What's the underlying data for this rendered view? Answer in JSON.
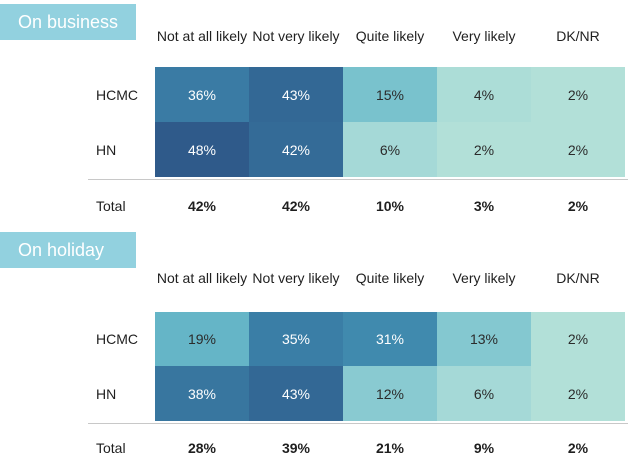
{
  "chart_data": {
    "type": "heatmap",
    "columns": [
      "Not at all likely",
      "Not very likely",
      "Quite likely",
      "Very likely",
      "DK/NR"
    ],
    "sections": [
      {
        "title": "On business",
        "rows": [
          {
            "label": "HCMC",
            "values": [
              36,
              43,
              15,
              4,
              2
            ],
            "display": [
              "36%",
              "43%",
              "15%",
              "4%",
              "2%"
            ]
          },
          {
            "label": "HN",
            "values": [
              48,
              42,
              6,
              2,
              2
            ],
            "display": [
              "48%",
              "42%",
              "6%",
              "2%",
              "2%"
            ]
          }
        ],
        "total": {
          "label": "Total",
          "display": [
            "42%",
            "42%",
            "10%",
            "3%",
            "2%"
          ]
        }
      },
      {
        "title": "On holiday",
        "rows": [
          {
            "label": "HCMC",
            "values": [
              19,
              35,
              31,
              13,
              2
            ],
            "display": [
              "19%",
              "35%",
              "31%",
              "13%",
              "2%"
            ]
          },
          {
            "label": "HN",
            "values": [
              38,
              43,
              12,
              6,
              2
            ],
            "display": [
              "38%",
              "43%",
              "12%",
              "6%",
              "2%"
            ]
          }
        ],
        "total": {
          "label": "Total",
          "display": [
            "28%",
            "39%",
            "21%",
            "9%",
            "2%"
          ]
        }
      }
    ],
    "color_scale": {
      "low": "#b8e3d8",
      "high": "#2f5a8a"
    }
  }
}
